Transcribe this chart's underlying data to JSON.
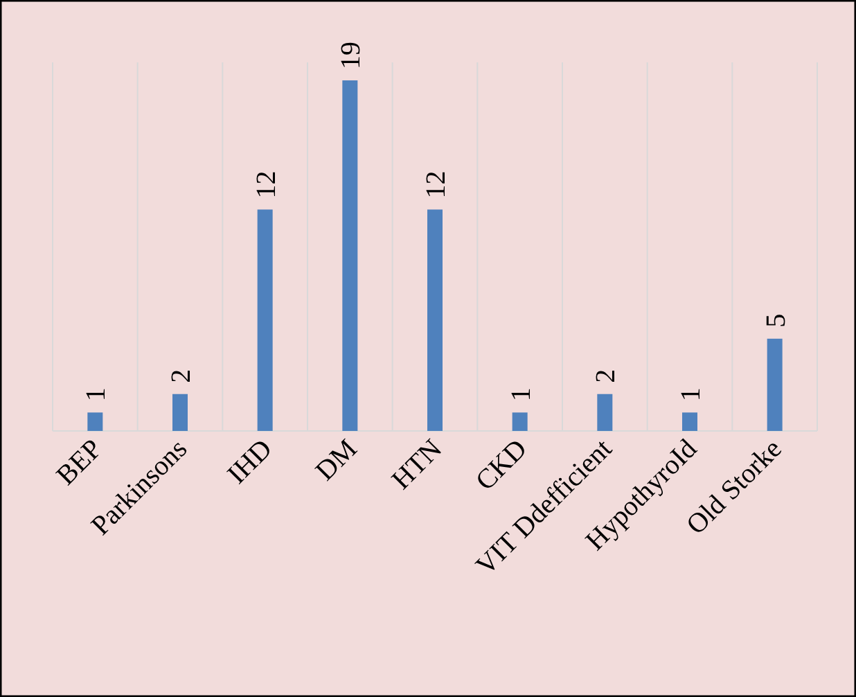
{
  "chart_data": {
    "type": "bar",
    "categories": [
      "BEP",
      "Parkinsons",
      "IHD",
      "DM",
      "HTN",
      "CKD",
      "VIT Ddefficient",
      "HypothyroId",
      "Old Storke"
    ],
    "values": [
      1,
      2,
      12,
      19,
      12,
      1,
      2,
      1,
      5
    ],
    "color": "#4f81bd",
    "data_labels": true,
    "grid": "x"
  }
}
